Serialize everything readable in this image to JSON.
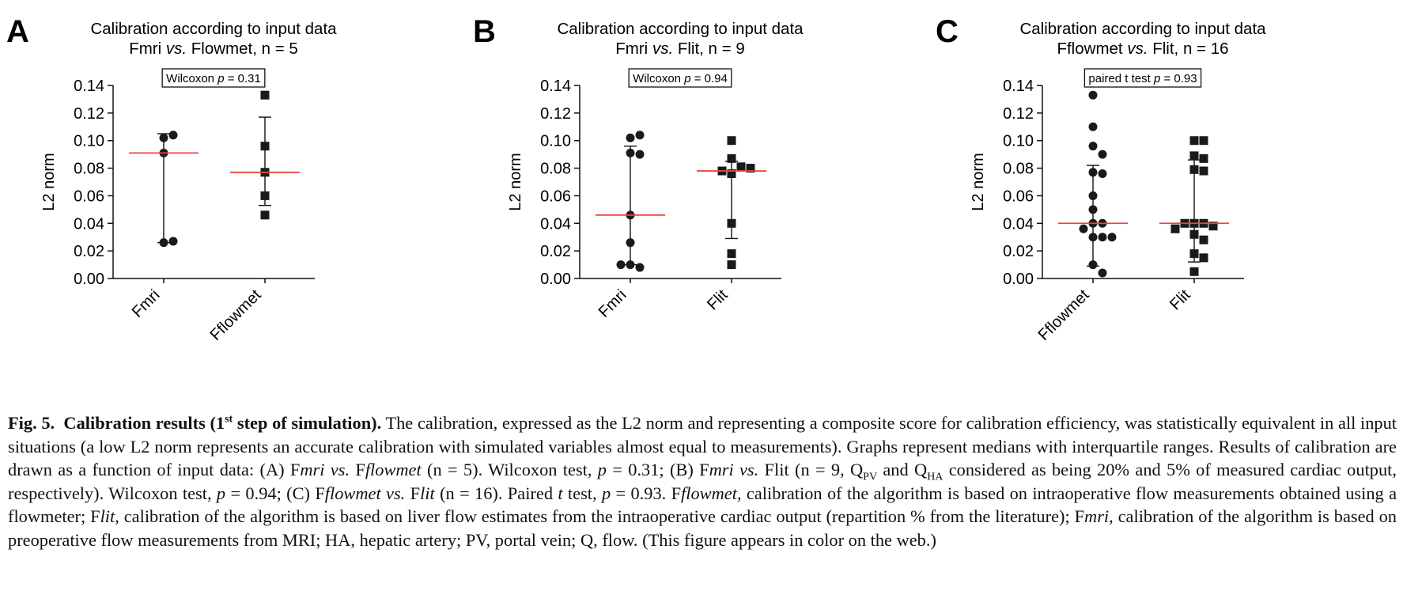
{
  "chart_data": [
    {
      "panel_letter": "A",
      "type": "scatter",
      "title": [
        "Calibration according to input data",
        "Fmri vs. Flowmet, n = 5"
      ],
      "ylabel": "L2 norm",
      "ylim": [
        0,
        0.14
      ],
      "yticks": [
        "0.00",
        "0.02",
        "0.04",
        "0.06",
        "0.08",
        "0.10",
        "0.12",
        "0.14"
      ],
      "stat_box": {
        "pre": "Wilcoxon ",
        "p": "p",
        "post": " = 0.31"
      },
      "groups": [
        {
          "name": "Fmri",
          "marker": "circle",
          "median": 0.091,
          "q1": 0.026,
          "q3": 0.105,
          "points": [
            0.102,
            0.104,
            0.091,
            0.026,
            0.027
          ]
        },
        {
          "name": "Fflowmet",
          "marker": "square",
          "median": 0.077,
          "q1": 0.053,
          "q3": 0.117,
          "points": [
            0.133,
            0.096,
            0.077,
            0.06,
            0.046
          ]
        }
      ]
    },
    {
      "panel_letter": "B",
      "type": "scatter",
      "title": [
        "Calibration according to input data",
        "Fmri vs. Flit, n = 9"
      ],
      "ylabel": "L2 norm",
      "ylim": [
        0,
        0.14
      ],
      "yticks": [
        "0.00",
        "0.02",
        "0.04",
        "0.06",
        "0.08",
        "0.10",
        "0.12",
        "0.14"
      ],
      "stat_box": {
        "pre": "Wilcoxon ",
        "p": "p",
        "post": " = 0.94"
      },
      "groups": [
        {
          "name": "Fmri",
          "marker": "circle",
          "median": 0.046,
          "q1": 0.01,
          "q3": 0.096,
          "points": [
            0.102,
            0.104,
            0.091,
            0.09,
            0.046,
            0.026,
            0.01,
            0.008,
            0.01
          ]
        },
        {
          "name": "Flit",
          "marker": "square",
          "median": 0.078,
          "q1": 0.029,
          "q3": 0.085,
          "points": [
            0.1,
            0.087,
            0.081,
            0.076,
            0.078,
            0.08,
            0.04,
            0.018,
            0.01
          ]
        }
      ]
    },
    {
      "panel_letter": "C",
      "type": "scatter",
      "title": [
        "Calibration according to input data",
        "Fflowmet vs. Flit, n = 16"
      ],
      "ylabel": "L2 norm",
      "ylim": [
        0,
        0.14
      ],
      "yticks": [
        "0.00",
        "0.02",
        "0.04",
        "0.06",
        "0.08",
        "0.10",
        "0.12",
        "0.14"
      ],
      "stat_box": {
        "pre": "paired t test ",
        "p": "p",
        "post": " = 0.93"
      },
      "groups": [
        {
          "name": "Fflowmet",
          "marker": "circle",
          "median": 0.04,
          "q1": 0.009,
          "q3": 0.082,
          "points": [
            0.133,
            0.11,
            0.096,
            0.09,
            0.077,
            0.076,
            0.06,
            0.05,
            0.04,
            0.04,
            0.036,
            0.03,
            0.03,
            0.03,
            0.01,
            0.004
          ]
        },
        {
          "name": "Flit",
          "marker": "square",
          "median": 0.04,
          "q1": 0.012,
          "q3": 0.086,
          "points": [
            0.1,
            0.1,
            0.089,
            0.087,
            0.079,
            0.078,
            0.04,
            0.04,
            0.04,
            0.038,
            0.036,
            0.032,
            0.028,
            0.018,
            0.015,
            0.005
          ]
        }
      ]
    }
  ],
  "colors": {
    "median_line": "#e8473c",
    "marker": "#1a1a1a",
    "axis": "#111111"
  },
  "caption": {
    "fig_label": "Fig. 5.",
    "heading_pre": "Calibration results (1",
    "heading_sup": "st",
    "heading_post": " step of simulation).",
    "text_1": " The calibration, expressed as the L2 norm and representing a composite score for calibration efficiency, was statistically equivalent in all input situations (a low L2 norm represents an accurate calibration with simulated variables almost equal to measurements). Graphs represent medians with interquartile ranges. Results of calibration are drawn as a function of input data: (A) F",
    "i1": "mri vs.",
    "text_2": " F",
    "i2": "flowmet",
    "text_3": " (n = 5). Wilcoxon test, ",
    "i3": "p",
    "text_4": " = 0.31; (B) F",
    "i4": "mri vs.",
    "text_5": " Flit (n = 9, Q",
    "sub1": "PV",
    "text_6": " and Q",
    "sub2": "HA",
    "text_7": " considered as being 20% and 5% of measured cardiac output, respectively). Wilcoxon test, ",
    "i5": "p",
    "text_8": " = 0.94; (C) F",
    "i6": "flowmet vs.",
    "text_9": " F",
    "i7": "lit",
    "text_10": " (n = 16). Paired ",
    "i8": "t",
    "text_11": " test, ",
    "i9": "p",
    "text_12": " = 0.93. F",
    "i10": "flowmet,",
    "text_13": " calibration of the algorithm is based on intraoperative flow measurements obtained using a flowmeter; F",
    "i11": "lit",
    "text_14": ", calibration of the algorithm is based on liver flow estimates from the intraoperative cardiac output (repartition % from the literature); F",
    "i12": "mri",
    "text_15": ", calibration of the algorithm is based on preoperative flow measurements from MRI; HA, hepatic artery; PV, portal vein; Q, flow. (This figure appears in color on the web.)"
  }
}
